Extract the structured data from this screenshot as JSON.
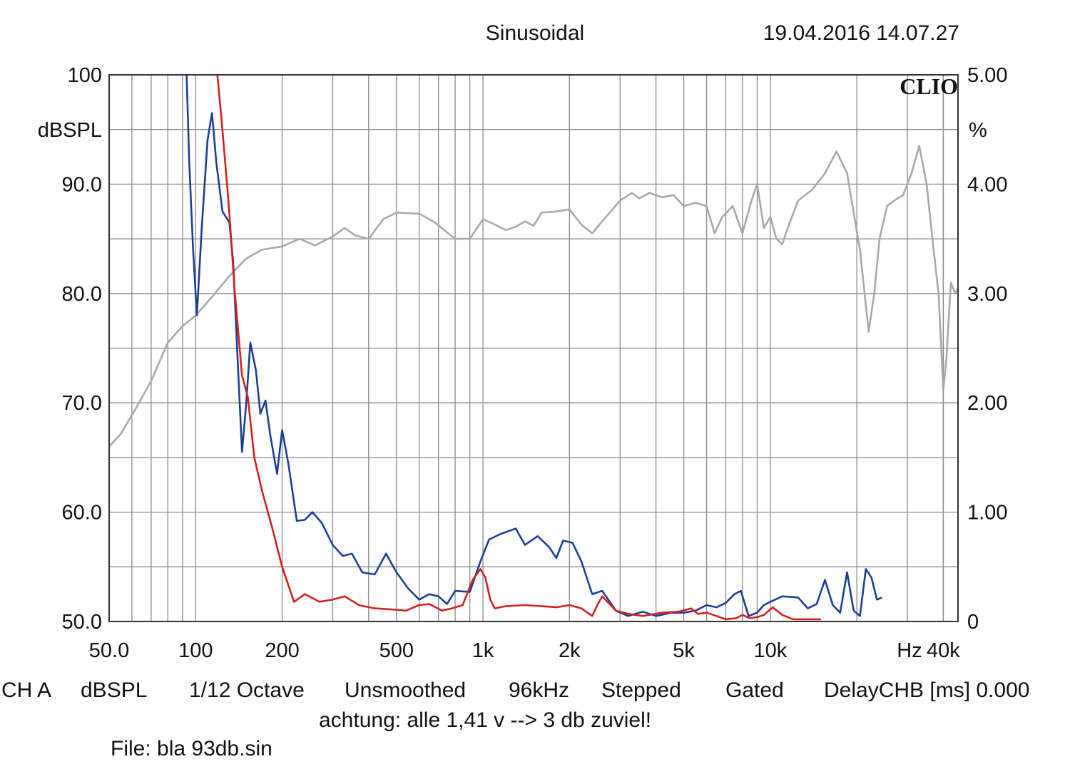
{
  "header": {
    "mode": "Sinusoidal",
    "datetime": "19.04.2016 14.07.27",
    "logo": "CLIO"
  },
  "chart_data": {
    "type": "line",
    "x_scale": "log",
    "xlim": [
      50,
      45000
    ],
    "ylim_left": [
      50,
      100
    ],
    "ylim_right": [
      0,
      5
    ],
    "left_unit": "dBSPL",
    "right_unit": "%",
    "x_unit": "Hz",
    "x_tick_labels": [
      {
        "x": 50,
        "label": "50.0"
      },
      {
        "x": 100,
        "label": "100"
      },
      {
        "x": 200,
        "label": "200"
      },
      {
        "x": 500,
        "label": "500"
      },
      {
        "x": 1000,
        "label": "1k"
      },
      {
        "x": 2000,
        "label": "2k"
      },
      {
        "x": 5000,
        "label": "5k"
      },
      {
        "x": 10000,
        "label": "10k"
      },
      {
        "x": 40000,
        "label": "40k"
      }
    ],
    "y_tick_labels_left": [
      {
        "y": 100,
        "label": "100"
      },
      {
        "y": 90,
        "label": "90.0"
      },
      {
        "y": 80,
        "label": "80.0"
      },
      {
        "y": 70,
        "label": "70.0"
      },
      {
        "y": 60,
        "label": "60.0"
      },
      {
        "y": 50,
        "label": "50.0"
      }
    ],
    "y_tick_labels_right": [
      {
        "y": 5,
        "label": "5.00"
      },
      {
        "y": 4,
        "label": "4.00"
      },
      {
        "y": 3,
        "label": "3.00"
      },
      {
        "y": 2,
        "label": "2.00"
      },
      {
        "y": 1,
        "label": "1.00"
      },
      {
        "y": 0,
        "label": "0"
      }
    ],
    "grid": true,
    "series": [
      {
        "axis": "left",
        "color": "#a8a8a8",
        "points": [
          [
            50,
            66
          ],
          [
            55,
            67.2
          ],
          [
            62,
            69.5
          ],
          [
            70,
            72
          ],
          [
            80,
            75.5
          ],
          [
            90,
            77
          ],
          [
            100,
            78
          ],
          [
            115,
            79.8
          ],
          [
            130,
            81.5
          ],
          [
            150,
            83.2
          ],
          [
            170,
            84
          ],
          [
            200,
            84.3
          ],
          [
            230,
            85
          ],
          [
            260,
            84.4
          ],
          [
            300,
            85.2
          ],
          [
            330,
            86
          ],
          [
            360,
            85.3
          ],
          [
            400,
            85
          ],
          [
            450,
            86.8
          ],
          [
            500,
            87.4
          ],
          [
            600,
            87.3
          ],
          [
            680,
            86.5
          ],
          [
            800,
            85
          ],
          [
            900,
            85
          ],
          [
            1000,
            86.8
          ],
          [
            1100,
            86.3
          ],
          [
            1200,
            85.8
          ],
          [
            1300,
            86.1
          ],
          [
            1400,
            86.6
          ],
          [
            1500,
            86.2
          ],
          [
            1600,
            87.4
          ],
          [
            1800,
            87.5
          ],
          [
            2000,
            87.7
          ],
          [
            2200,
            86.3
          ],
          [
            2400,
            85.5
          ],
          [
            2600,
            86.6
          ],
          [
            3000,
            88.5
          ],
          [
            3300,
            89.2
          ],
          [
            3500,
            88.7
          ],
          [
            3800,
            89.2
          ],
          [
            4200,
            88.8
          ],
          [
            4600,
            89
          ],
          [
            5000,
            88
          ],
          [
            5500,
            88.3
          ],
          [
            6000,
            88
          ],
          [
            6400,
            85.5
          ],
          [
            6800,
            87
          ],
          [
            7400,
            88
          ],
          [
            8000,
            85.5
          ],
          [
            8600,
            88.5
          ],
          [
            9000,
            90
          ],
          [
            9500,
            86
          ],
          [
            10000,
            87
          ],
          [
            10500,
            85
          ],
          [
            11000,
            84.5
          ],
          [
            11500,
            86
          ],
          [
            12500,
            88.5
          ],
          [
            14000,
            89.5
          ],
          [
            15500,
            91
          ],
          [
            17000,
            93
          ],
          [
            18500,
            91
          ],
          [
            20500,
            84
          ],
          [
            22000,
            76.5
          ],
          [
            23000,
            80
          ],
          [
            24000,
            85
          ],
          [
            25500,
            88
          ],
          [
            27000,
            88.5
          ],
          [
            29000,
            89
          ],
          [
            31000,
            91
          ],
          [
            33000,
            93.5
          ],
          [
            35000,
            90
          ],
          [
            37000,
            84
          ],
          [
            38500,
            80
          ],
          [
            40000,
            71.2
          ],
          [
            41000,
            74
          ],
          [
            42500,
            81
          ],
          [
            44000,
            80
          ],
          [
            45000,
            80.5
          ]
        ]
      },
      {
        "axis": "left",
        "color": "#1c3f94",
        "points": [
          [
            93,
            100
          ],
          [
            95,
            92
          ],
          [
            98,
            84
          ],
          [
            101,
            78
          ],
          [
            105,
            86
          ],
          [
            110,
            94
          ],
          [
            114,
            96.5
          ],
          [
            118,
            92
          ],
          [
            124,
            87.5
          ],
          [
            131,
            86.5
          ],
          [
            135,
            83
          ],
          [
            140,
            74
          ],
          [
            145,
            65.5
          ],
          [
            150,
            70
          ],
          [
            155,
            75.5
          ],
          [
            162,
            73
          ],
          [
            168,
            69
          ],
          [
            175,
            70.2
          ],
          [
            182,
            67
          ],
          [
            192,
            63.5
          ],
          [
            200,
            67.5
          ],
          [
            210,
            64.5
          ],
          [
            225,
            59.2
          ],
          [
            240,
            59.3
          ],
          [
            255,
            60
          ],
          [
            275,
            59
          ],
          [
            300,
            57
          ],
          [
            325,
            56
          ],
          [
            350,
            56.2
          ],
          [
            380,
            54.5
          ],
          [
            420,
            54.3
          ],
          [
            460,
            56.2
          ],
          [
            500,
            54.5
          ],
          [
            550,
            53
          ],
          [
            600,
            52
          ],
          [
            650,
            52.5
          ],
          [
            700,
            52.3
          ],
          [
            750,
            51.6
          ],
          [
            800,
            52.8
          ],
          [
            900,
            52.7
          ],
          [
            980,
            55.5
          ],
          [
            1050,
            57.5
          ],
          [
            1150,
            58
          ],
          [
            1300,
            58.5
          ],
          [
            1400,
            57
          ],
          [
            1550,
            57.8
          ],
          [
            1700,
            56.8
          ],
          [
            1800,
            55.8
          ],
          [
            1900,
            57.4
          ],
          [
            2050,
            57.2
          ],
          [
            2200,
            55.5
          ],
          [
            2400,
            52.5
          ],
          [
            2600,
            52.8
          ],
          [
            2900,
            51
          ],
          [
            3200,
            50.5
          ],
          [
            3600,
            50.9
          ],
          [
            4000,
            50.5
          ],
          [
            4500,
            50.8
          ],
          [
            5000,
            50.8
          ],
          [
            5500,
            51
          ],
          [
            6000,
            51.5
          ],
          [
            6500,
            51.3
          ],
          [
            7000,
            51.7
          ],
          [
            7500,
            52.5
          ],
          [
            7900,
            52.8
          ],
          [
            8400,
            50.5
          ],
          [
            9000,
            50.8
          ],
          [
            9500,
            51.5
          ],
          [
            10000,
            51.8
          ],
          [
            11000,
            52.3
          ],
          [
            12500,
            52.2
          ],
          [
            13500,
            51.2
          ],
          [
            14500,
            51.6
          ],
          [
            15500,
            53.8
          ],
          [
            16500,
            51.5
          ],
          [
            17500,
            50.8
          ],
          [
            18500,
            54.5
          ],
          [
            19500,
            51
          ],
          [
            20500,
            50.5
          ],
          [
            21500,
            54.8
          ],
          [
            22500,
            54
          ],
          [
            23500,
            52
          ],
          [
            24500,
            52.2
          ]
        ]
      },
      {
        "axis": "left",
        "color": "#d42020",
        "points": [
          [
            119,
            100
          ],
          [
            123,
            96
          ],
          [
            130,
            88.5
          ],
          [
            137,
            80
          ],
          [
            145,
            72.5
          ],
          [
            152,
            70.5
          ],
          [
            160,
            65
          ],
          [
            170,
            62
          ],
          [
            185,
            58.5
          ],
          [
            200,
            55
          ],
          [
            220,
            51.8
          ],
          [
            240,
            52.5
          ],
          [
            270,
            51.8
          ],
          [
            300,
            52
          ],
          [
            330,
            52.3
          ],
          [
            370,
            51.5
          ],
          [
            420,
            51.2
          ],
          [
            480,
            51.1
          ],
          [
            540,
            51
          ],
          [
            600,
            51.5
          ],
          [
            650,
            51.6
          ],
          [
            720,
            51
          ],
          [
            780,
            51.2
          ],
          [
            850,
            51.5
          ],
          [
            920,
            53.8
          ],
          [
            980,
            54.8
          ],
          [
            1020,
            54
          ],
          [
            1060,
            52
          ],
          [
            1100,
            51.2
          ],
          [
            1200,
            51.4
          ],
          [
            1400,
            51.5
          ],
          [
            1600,
            51.4
          ],
          [
            1800,
            51.3
          ],
          [
            2000,
            51.5
          ],
          [
            2200,
            51.2
          ],
          [
            2400,
            50.5
          ],
          [
            2500,
            51.5
          ],
          [
            2600,
            52.3
          ],
          [
            2900,
            51
          ],
          [
            3200,
            50.7
          ],
          [
            3600,
            50.5
          ],
          [
            4200,
            50.8
          ],
          [
            4800,
            50.9
          ],
          [
            5300,
            51.2
          ],
          [
            5600,
            50.7
          ],
          [
            6000,
            50.8
          ],
          [
            6500,
            50.5
          ],
          [
            7000,
            50.2
          ],
          [
            7600,
            50.3
          ],
          [
            8000,
            50.6
          ],
          [
            8500,
            50.3
          ],
          [
            9000,
            50.4
          ],
          [
            9500,
            50.6
          ],
          [
            10200,
            51.3
          ],
          [
            11000,
            50.6
          ],
          [
            12000,
            50.2
          ],
          [
            13500,
            50.2
          ],
          [
            15000,
            50.2
          ]
        ]
      }
    ]
  },
  "footer": {
    "channel": "CH A",
    "unit": "dBSPL",
    "resolution": "1/12 Octave",
    "smoothing": "Unsmoothed",
    "sample_rate": "96kHz",
    "sweep": "Stepped",
    "window": "Gated",
    "delay": "DelayCHB [ms] 0.000",
    "note": "achtung: alle 1,41 v --> 3 db zuviel!",
    "file": "File: bla 93db.sin"
  }
}
